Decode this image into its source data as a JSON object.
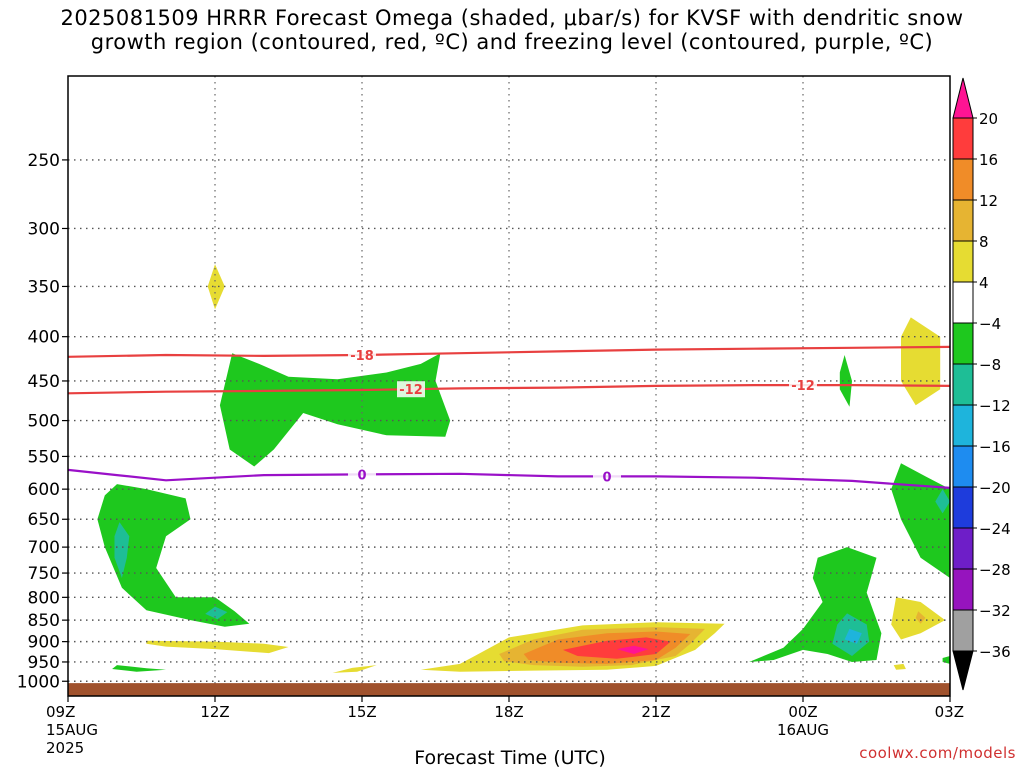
{
  "title_line1": "2025081509 HRRR Forecast Omega (shaded, μbar/s) for KVSF with dendritic snow",
  "title_line2": "growth region (contoured, red, ºC) and freezing level (contoured, purple, ºC)",
  "credit": "coolwx.com/models",
  "chart_data": {
    "type": "heatmap",
    "xlabel": "Forecast Time (UTC)",
    "ylabel": "",
    "x_range_hours": [
      0,
      18
    ],
    "y_scale": "log-pressure",
    "y_range_mb": [
      200,
      1040
    ],
    "grid": true,
    "x_ticks": [
      {
        "hour": 0,
        "label": "09Z",
        "sub1": "15AUG",
        "sub2": "2025"
      },
      {
        "hour": 3,
        "label": "12Z",
        "sub1": "",
        "sub2": ""
      },
      {
        "hour": 6,
        "label": "15Z",
        "sub1": "",
        "sub2": ""
      },
      {
        "hour": 9,
        "label": "18Z",
        "sub1": "",
        "sub2": ""
      },
      {
        "hour": 12,
        "label": "21Z",
        "sub1": "",
        "sub2": ""
      },
      {
        "hour": 15,
        "label": "00Z",
        "sub1": "16AUG",
        "sub2": ""
      },
      {
        "hour": 18,
        "label": "03Z",
        "sub1": "",
        "sub2": ""
      }
    ],
    "y_ticks": [
      250,
      300,
      350,
      400,
      450,
      500,
      550,
      600,
      650,
      700,
      750,
      800,
      850,
      900,
      950,
      1000
    ],
    "colorbar": {
      "labels": [
        20,
        16,
        12,
        8,
        4,
        -4,
        -8,
        -12,
        -16,
        -20,
        -24,
        -28,
        -32,
        -36
      ],
      "colors": [
        "#ff1493",
        "#ff3c3c",
        "#f08c28",
        "#e6b432",
        "#e6dc32",
        "#ffffff",
        "#1ec81e",
        "#1ebe96",
        "#1eb4dc",
        "#1e8cf0",
        "#1e3cdc",
        "#6e1ec8",
        "#9614be",
        "#a0a0a0",
        "#000000"
      ]
    },
    "contours": [
      {
        "name": "",
        "color": "#e84040",
        "label": "-18",
        "label_hour": 6.0,
        "points": [
          [
            0,
            422
          ],
          [
            2,
            420
          ],
          [
            4,
            421
          ],
          [
            6,
            420
          ],
          [
            8,
            418
          ],
          [
            10,
            416
          ],
          [
            12,
            414
          ],
          [
            14,
            413
          ],
          [
            16,
            412
          ],
          [
            18,
            411
          ]
        ]
      },
      {
        "name": "",
        "color": "#e84040",
        "label": "-12",
        "label_hour": 7.0,
        "points": [
          [
            0,
            465
          ],
          [
            2,
            463
          ],
          [
            4,
            462
          ],
          [
            6,
            461
          ],
          [
            8,
            459
          ],
          [
            10,
            458
          ],
          [
            12,
            456
          ],
          [
            14,
            455
          ],
          [
            16,
            455
          ],
          [
            18,
            456
          ]
        ]
      },
      {
        "name": "",
        "color": "#9a10c8",
        "label": "0",
        "label_hour": 6.0,
        "points": [
          [
            0,
            570
          ],
          [
            1,
            578
          ],
          [
            2,
            586
          ],
          [
            3,
            582
          ],
          [
            4,
            578
          ],
          [
            6,
            577
          ],
          [
            8,
            576
          ],
          [
            10,
            580
          ],
          [
            12,
            580
          ],
          [
            14,
            582
          ],
          [
            16,
            587
          ],
          [
            18,
            598
          ]
        ]
      },
      {
        "name": "",
        "color": "#9a10c8",
        "label": "0",
        "label_hour": 11.0,
        "points": []
      },
      {
        "name": "",
        "color": "#e84040",
        "label": "-12",
        "label_hour": 15.0,
        "points": []
      }
    ],
    "shaded_regions": [
      {
        "value": -6,
        "color": "#1ec81e",
        "points": [
          [
            3.35,
            418
          ],
          [
            3.9,
            430
          ],
          [
            4.5,
            445
          ],
          [
            5.5,
            448
          ],
          [
            6.5,
            440
          ],
          [
            7.2,
            430
          ],
          [
            7.6,
            418
          ],
          [
            7.5,
            450
          ],
          [
            7.8,
            500
          ],
          [
            7.7,
            522
          ],
          [
            6.5,
            520
          ],
          [
            5.5,
            505
          ],
          [
            4.8,
            490
          ],
          [
            4.2,
            540
          ],
          [
            3.8,
            565
          ],
          [
            3.3,
            540
          ],
          [
            3.1,
            480
          ]
        ]
      },
      {
        "value": -6,
        "color": "#1ec81e",
        "points": [
          [
            1.0,
            592
          ],
          [
            1.6,
            600
          ],
          [
            2.4,
            615
          ],
          [
            2.5,
            650
          ],
          [
            2.0,
            680
          ],
          [
            1.8,
            740
          ],
          [
            2.2,
            800
          ],
          [
            3.0,
            800
          ],
          [
            3.4,
            830
          ],
          [
            3.7,
            858
          ],
          [
            3.2,
            865
          ],
          [
            2.5,
            850
          ],
          [
            1.6,
            828
          ],
          [
            1.1,
            780
          ],
          [
            0.75,
            700
          ],
          [
            0.6,
            650
          ],
          [
            0.75,
            610
          ]
        ]
      },
      {
        "value": -10,
        "color": "#1ebe96",
        "points": [
          [
            1.05,
            655
          ],
          [
            1.25,
            680
          ],
          [
            1.2,
            720
          ],
          [
            1.1,
            760
          ],
          [
            0.95,
            720
          ],
          [
            0.95,
            680
          ]
        ]
      },
      {
        "value": -10,
        "color": "#1ebe96",
        "points": [
          [
            3.0,
            820
          ],
          [
            3.25,
            832
          ],
          [
            3.05,
            848
          ],
          [
            2.8,
            836
          ]
        ]
      },
      {
        "value": -6,
        "color": "#1ec81e",
        "points": [
          [
            17.0,
            560
          ],
          [
            17.5,
            580
          ],
          [
            18.0,
            600
          ],
          [
            18.0,
            760
          ],
          [
            17.4,
            720
          ],
          [
            17.0,
            650
          ],
          [
            16.8,
            600
          ]
        ]
      },
      {
        "value": -10,
        "color": "#1ebe96",
        "points": [
          [
            17.85,
            600
          ],
          [
            18.0,
            620
          ],
          [
            17.85,
            640
          ],
          [
            17.7,
            620
          ]
        ]
      },
      {
        "value": -6,
        "color": "#1ec81e",
        "points": [
          [
            15.3,
            720
          ],
          [
            15.9,
            700
          ],
          [
            16.5,
            720
          ],
          [
            16.3,
            790
          ],
          [
            16.6,
            880
          ],
          [
            16.5,
            945
          ],
          [
            16.0,
            950
          ],
          [
            15.5,
            930
          ],
          [
            15.0,
            920
          ],
          [
            14.4,
            945
          ],
          [
            13.9,
            950
          ],
          [
            14.6,
            915
          ],
          [
            15.0,
            870
          ],
          [
            15.4,
            810
          ],
          [
            15.2,
            760
          ]
        ]
      },
      {
        "value": -10,
        "color": "#1ebe96",
        "points": [
          [
            15.9,
            835
          ],
          [
            16.3,
            860
          ],
          [
            16.35,
            900
          ],
          [
            16.0,
            935
          ],
          [
            15.6,
            905
          ],
          [
            15.7,
            860
          ]
        ]
      },
      {
        "value": -14,
        "color": "#1eb4dc",
        "points": [
          [
            15.95,
            870
          ],
          [
            16.2,
            880
          ],
          [
            16.1,
            905
          ],
          [
            15.85,
            895
          ]
        ]
      },
      {
        "value": -6,
        "color": "#1ec81e",
        "points": [
          [
            15.85,
            420
          ],
          [
            16.0,
            450
          ],
          [
            15.95,
            482
          ],
          [
            15.75,
            460
          ],
          [
            15.75,
            440
          ]
        ]
      },
      {
        "value": -6,
        "color": "#1ec81e",
        "points": [
          [
            1.0,
            958
          ],
          [
            1.6,
            966
          ],
          [
            2.0,
            970
          ],
          [
            1.4,
            975
          ],
          [
            0.9,
            968
          ]
        ]
      },
      {
        "value": -6,
        "color": "#1ec81e",
        "points": [
          [
            17.85,
            940
          ],
          [
            18.0,
            935
          ],
          [
            18.0,
            955
          ],
          [
            17.85,
            950
          ]
        ]
      },
      {
        "value": 6,
        "color": "#e6dc32",
        "points": [
          [
            3.0,
            330
          ],
          [
            3.2,
            350
          ],
          [
            3.0,
            372
          ],
          [
            2.85,
            350
          ]
        ]
      },
      {
        "value": 6,
        "color": "#e6dc32",
        "points": [
          [
            17.2,
            380
          ],
          [
            17.8,
            400
          ],
          [
            17.8,
            460
          ],
          [
            17.3,
            480
          ],
          [
            17.0,
            450
          ],
          [
            17.0,
            400
          ]
        ]
      },
      {
        "value": 6,
        "color": "#e6dc32",
        "points": [
          [
            16.9,
            800
          ],
          [
            17.4,
            810
          ],
          [
            17.9,
            850
          ],
          [
            17.4,
            880
          ],
          [
            17.0,
            895
          ],
          [
            16.8,
            860
          ]
        ]
      },
      {
        "value": 10,
        "color": "#e6b432",
        "points": [
          [
            17.35,
            830
          ],
          [
            17.5,
            845
          ],
          [
            17.4,
            858
          ],
          [
            17.3,
            845
          ]
        ]
      },
      {
        "value": 6,
        "color": "#e6dc32",
        "points": [
          [
            1.6,
            898
          ],
          [
            3.0,
            900
          ],
          [
            4.0,
            905
          ],
          [
            4.5,
            913
          ],
          [
            4.1,
            928
          ],
          [
            3.0,
            918
          ],
          [
            2.0,
            912
          ],
          [
            1.6,
            905
          ]
        ]
      },
      {
        "value": 6,
        "color": "#e6dc32",
        "points": [
          [
            7.2,
            970
          ],
          [
            8.0,
            955
          ],
          [
            8.3,
            935
          ],
          [
            9.0,
            890
          ],
          [
            10.5,
            862
          ],
          [
            12.0,
            855
          ],
          [
            13.4,
            858
          ],
          [
            13.2,
            880
          ],
          [
            12.8,
            920
          ],
          [
            12.0,
            960
          ],
          [
            11.0,
            970
          ],
          [
            9.5,
            972
          ],
          [
            8.0,
            975
          ]
        ]
      },
      {
        "value": 10,
        "color": "#e6b432",
        "points": [
          [
            8.8,
            930
          ],
          [
            9.5,
            895
          ],
          [
            10.5,
            872
          ],
          [
            12.0,
            866
          ],
          [
            13.0,
            870
          ],
          [
            12.7,
            905
          ],
          [
            12.4,
            935
          ],
          [
            11.5,
            958
          ],
          [
            10.5,
            962
          ],
          [
            9.5,
            958
          ],
          [
            8.9,
            948
          ]
        ]
      },
      {
        "value": 14,
        "color": "#f08c28",
        "points": [
          [
            9.3,
            930
          ],
          [
            10.0,
            895
          ],
          [
            11.0,
            880
          ],
          [
            12.0,
            876
          ],
          [
            12.7,
            882
          ],
          [
            12.4,
            915
          ],
          [
            12.0,
            945
          ],
          [
            11.0,
            955
          ],
          [
            10.0,
            952
          ],
          [
            9.4,
            945
          ]
        ]
      },
      {
        "value": 18,
        "color": "#ff3c3c",
        "points": [
          [
            10.1,
            920
          ],
          [
            11.0,
            898
          ],
          [
            11.8,
            890
          ],
          [
            12.3,
            900
          ],
          [
            12.0,
            930
          ],
          [
            11.2,
            942
          ],
          [
            10.4,
            935
          ]
        ]
      },
      {
        "value": 22,
        "color": "#ff1493",
        "points": [
          [
            11.2,
            918
          ],
          [
            11.55,
            910
          ],
          [
            11.85,
            918
          ],
          [
            11.55,
            930
          ]
        ]
      },
      {
        "value": 6,
        "color": "#e6dc32",
        "points": [
          [
            5.8,
            965
          ],
          [
            6.3,
            958
          ],
          [
            5.9,
            975
          ],
          [
            5.4,
            978
          ]
        ]
      },
      {
        "value": 6,
        "color": "#e6dc32",
        "points": [
          [
            16.85,
            958
          ],
          [
            17.05,
            955
          ],
          [
            17.1,
            968
          ],
          [
            16.9,
            970
          ]
        ]
      }
    ]
  }
}
